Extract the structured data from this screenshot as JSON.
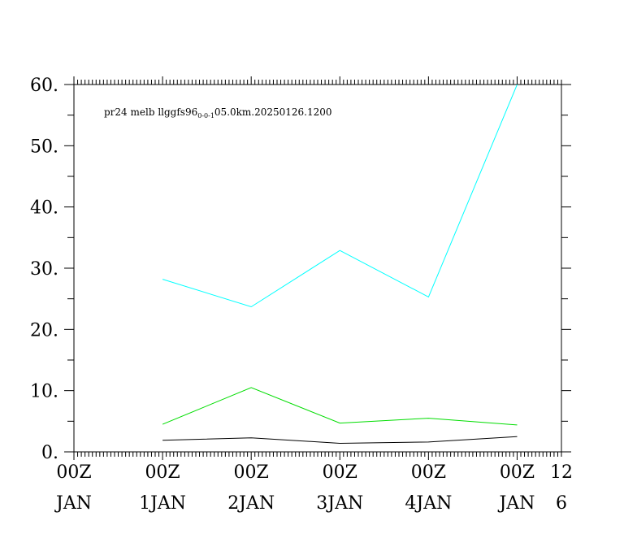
{
  "chart_data": {
    "type": "line",
    "title": {
      "prefix": "pr24 melb llggfs96",
      "subscript": "0-0-1",
      "suffix": "05.0km.20250126.1200"
    },
    "xlabel": "",
    "ylabel": "",
    "x": [
      1,
      2,
      3,
      4,
      5
    ],
    "xlim": [
      0,
      5.5
    ],
    "ylim": [
      0,
      60
    ],
    "y_ticks": [
      "0.",
      "10.",
      "20.",
      "30.",
      "40.",
      "50.",
      "60."
    ],
    "x_tick_labels": [
      {
        "x": 0,
        "time": "00Z",
        "date": "JAN"
      },
      {
        "x": 1,
        "time": "00Z",
        "date": "1JAN"
      },
      {
        "x": 2,
        "time": "00Z",
        "date": "2JAN"
      },
      {
        "x": 3,
        "time": "00Z",
        "date": "3JAN"
      },
      {
        "x": 4,
        "time": "00Z",
        "date": "4JAN"
      },
      {
        "x": 5,
        "time": "00Z",
        "date": "JAN"
      },
      {
        "x": 5.5,
        "time": "12",
        "date": "6"
      }
    ],
    "series": [
      {
        "color": "#00ffff",
        "values": [
          28.2,
          23.7,
          32.9,
          25.3,
          60.0
        ]
      },
      {
        "color": "#00dd00",
        "values": [
          4.5,
          10.5,
          4.7,
          5.5,
          4.4
        ]
      },
      {
        "color": "#000000",
        "values": [
          1.9,
          2.3,
          1.4,
          1.6,
          2.5
        ]
      }
    ],
    "grid": false,
    "legend": "none"
  }
}
